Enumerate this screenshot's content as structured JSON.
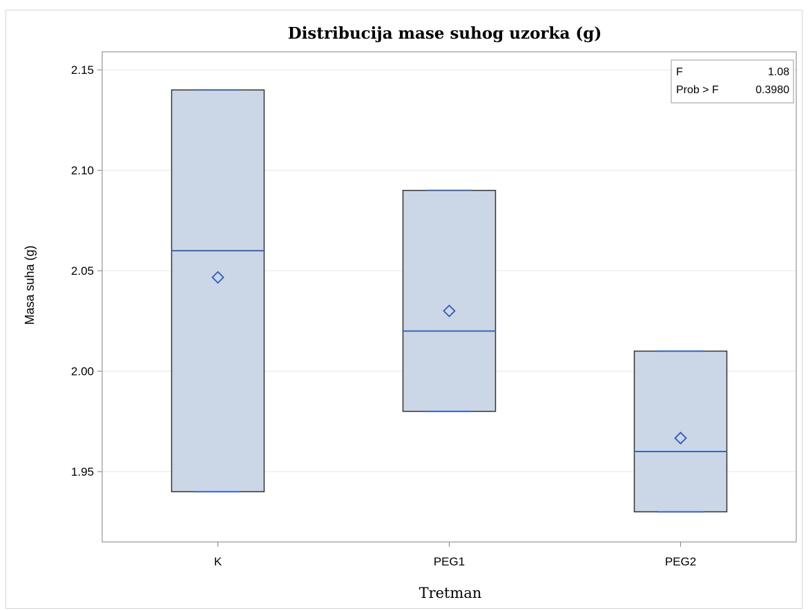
{
  "chart_data": {
    "type": "box",
    "title": "Distribucija mase suhog uzorka (g)",
    "xlabel": "Tretman",
    "ylabel": "Masa suha (g)",
    "ylim": [
      1.915,
      2.159
    ],
    "yticks": [
      1.95,
      2.0,
      2.05,
      2.1,
      2.15
    ],
    "ytick_labels": [
      "1.95",
      "2.00",
      "2.05",
      "2.10",
      "2.15"
    ],
    "grid": true,
    "categories": [
      "K",
      "PEG1",
      "PEG2"
    ],
    "boxes": [
      {
        "category": "K",
        "min": 1.94,
        "q1": 1.94,
        "median": 2.06,
        "q3": 2.14,
        "max": 2.14,
        "mean": 2.0467
      },
      {
        "category": "PEG1",
        "min": 1.98,
        "q1": 1.98,
        "median": 2.02,
        "q3": 2.09,
        "max": 2.09,
        "mean": 2.03
      },
      {
        "category": "PEG2",
        "min": 1.93,
        "q1": 1.93,
        "median": 1.96,
        "q3": 2.01,
        "max": 2.01,
        "mean": 1.9667
      }
    ],
    "inset": {
      "position": "top-right",
      "rows": [
        {
          "label": "F",
          "value": "1.08"
        },
        {
          "label": "Prob > F",
          "value": "0.3980"
        }
      ]
    },
    "colors": {
      "box_fill": "#cbd6e6",
      "box_edge": "#333333",
      "median": "#3b66b3",
      "mean_marker": "#2f5bb7",
      "grid": "#e6e6e6",
      "axis": "#7f7f7f"
    }
  }
}
